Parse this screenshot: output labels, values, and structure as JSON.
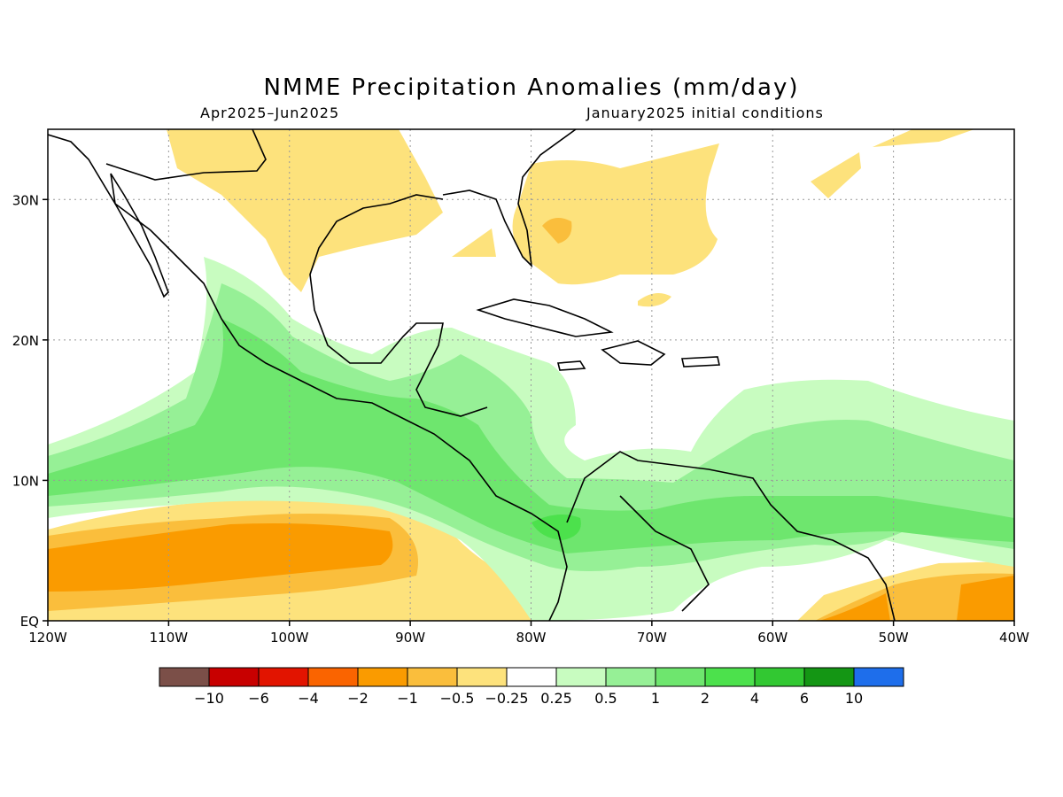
{
  "title": "NMME Precipitation Anomalies (mm/day)",
  "subtitle_left": "Apr2025–Jun2025",
  "subtitle_right": "January2025 initial conditions",
  "x_ticks": [
    {
      "lon": -120,
      "label": "120W"
    },
    {
      "lon": -110,
      "label": "110W"
    },
    {
      "lon": -100,
      "label": "100W"
    },
    {
      "lon": -90,
      "label": "90W"
    },
    {
      "lon": -80,
      "label": "80W"
    },
    {
      "lon": -70,
      "label": "70W"
    },
    {
      "lon": -60,
      "label": "60W"
    },
    {
      "lon": -50,
      "label": "50W"
    },
    {
      "lon": -40,
      "label": "40W"
    }
  ],
  "y_ticks": [
    {
      "lat": 0,
      "label": "EQ"
    },
    {
      "lat": 10,
      "label": "10N"
    },
    {
      "lat": 20,
      "label": "20N"
    },
    {
      "lat": 30,
      "label": "30N"
    }
  ],
  "extent": {
    "lon_min": -120,
    "lon_max": -40,
    "lat_min": 0,
    "lat_max": 35
  },
  "legend": {
    "colors": [
      "#7b4f48",
      "#c80000",
      "#e21400",
      "#fa6400",
      "#fa9b00",
      "#fabe3c",
      "#fde27c",
      "#ffffff",
      "#c8fcc0",
      "#96f096",
      "#6ee66e",
      "#4ce14c",
      "#32c832",
      "#149614",
      "#1e6eeb"
    ],
    "labels": [
      "−10",
      "−6",
      "−4",
      "−2",
      "−1",
      "−0.5",
      "−0.25",
      "0.25",
      "0.5",
      "1",
      "2",
      "4",
      "6",
      "10"
    ]
  },
  "colors": {
    "dry_light": "#fde27c",
    "dry_mid": "#fabe3c",
    "dry_strong": "#fa9b00",
    "wet_light": "#c8fcc0",
    "wet_mid": "#96f096",
    "wet_strong": "#6ee66e",
    "wet_core": "#4ce14c"
  }
}
